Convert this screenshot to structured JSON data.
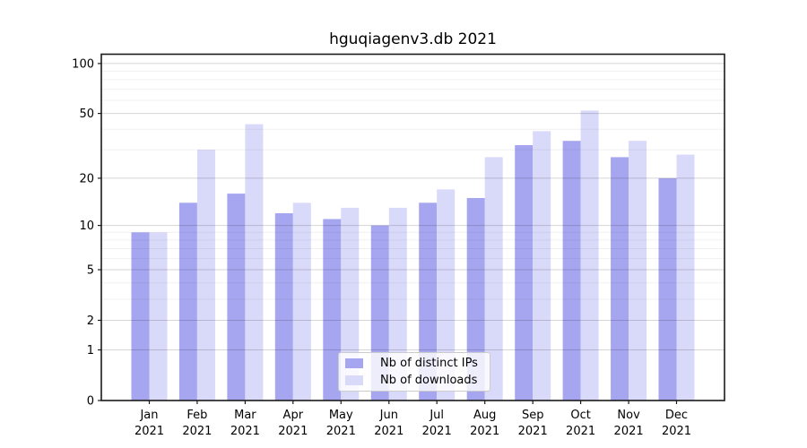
{
  "title": "hguqiagenv3.db 2021",
  "chart_data": {
    "type": "bar",
    "title": "hguqiagenv3.db 2021",
    "categories": [
      "Jan 2021",
      "Feb 2021",
      "Mar 2021",
      "Apr 2021",
      "May 2021",
      "Jun 2021",
      "Jul 2021",
      "Aug 2021",
      "Sep 2021",
      "Oct 2021",
      "Nov 2021",
      "Dec 2021"
    ],
    "series": [
      {
        "name": "Nb of distinct IPs",
        "color": "#a6a6f0",
        "values": [
          9,
          14,
          16,
          12,
          11,
          10,
          14,
          15,
          32,
          34,
          27,
          20
        ]
      },
      {
        "name": "Nb of downloads",
        "color": "#d9d9fa",
        "values": [
          9,
          30,
          43,
          14,
          13,
          13,
          17,
          27,
          39,
          52,
          34,
          28
        ]
      }
    ],
    "y_axis": {
      "scale": "symlog-like (y proportional to log(1+v))",
      "ticks": [
        0,
        1,
        2,
        5,
        10,
        20,
        50,
        100
      ],
      "minor_ticks": [
        3,
        4,
        6,
        7,
        8,
        9,
        30,
        40,
        60,
        70,
        80,
        90
      ],
      "range": [
        0,
        113
      ]
    },
    "x_axis": {
      "tick_labels_line1": [
        "Jan",
        "Feb",
        "Mar",
        "Apr",
        "May",
        "Jun",
        "Jul",
        "Aug",
        "Sep",
        "Oct",
        "Nov",
        "Dec"
      ],
      "tick_labels_line2": "2021"
    },
    "legend": {
      "position": "lower center",
      "items": [
        "Nb of distinct IPs",
        "Nb of downloads"
      ]
    },
    "grid": true,
    "colors": {
      "background": "#ffffff",
      "spine": "#1a1a1a",
      "major_grid": "rgba(0,0,0,0.165)",
      "minor_grid": "rgba(0,0,0,0.06)",
      "tick_text": "#000000"
    }
  }
}
